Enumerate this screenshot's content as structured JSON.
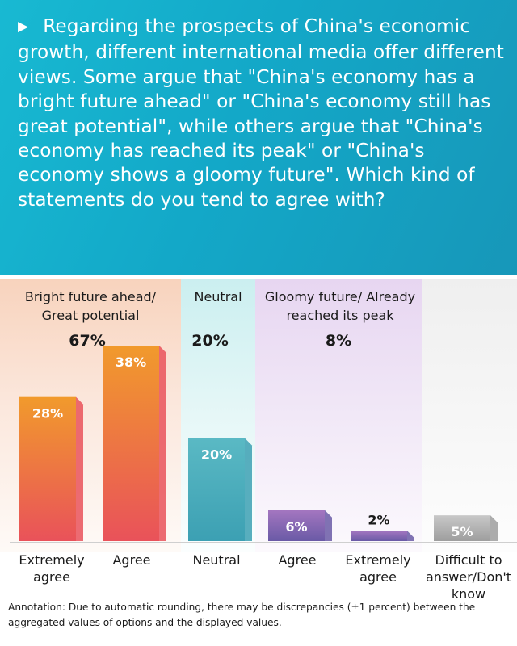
{
  "question": {
    "marker": "▶",
    "text": "Regarding the prospects of China's economic growth, different international media offer different views. Some argue that \"China's economy has a bright future ahead\" or \"China's economy still has great potential\", while others argue that \"China's economy has reached its peak\" or \"China's economy shows a gloomy future\". Which kind of statements do you tend to agree with?"
  },
  "groups": [
    {
      "label": "Bright future ahead/\nGreat potential",
      "total": "67%"
    },
    {
      "label": "Neutral",
      "total": "20%"
    },
    {
      "label": "Gloomy future/ Already\nreached its peak",
      "total": "8%"
    }
  ],
  "annotation": "Annotation: Due to automatic rounding, there may be discrepancies (±1 percent) between the aggregated values of options and the displayed values.",
  "chart_data": {
    "type": "bar",
    "categories": [
      "Extremely agree",
      "Agree",
      "Neutral",
      "Agree",
      "Extremely agree",
      "Difficult to answer/Don't know"
    ],
    "values": [
      28,
      38,
      20,
      6,
      2,
      5
    ],
    "value_labels": [
      "28%",
      "38%",
      "20%",
      "6%",
      "2%",
      "5%"
    ],
    "groups": [
      {
        "name": "Bright future ahead/ Great potential",
        "total": 67,
        "categories": [
          "Extremely agree",
          "Agree"
        ]
      },
      {
        "name": "Neutral",
        "total": 20,
        "categories": [
          "Neutral"
        ]
      },
      {
        "name": "Gloomy future/ Already reached its peak",
        "total": 8,
        "categories": [
          "Agree",
          "Extremely agree"
        ]
      }
    ],
    "colors": {
      "bright": [
        "#f19a2c",
        "#e9525a"
      ],
      "neutral": [
        "#5ab9c4",
        "#3ca0b3"
      ],
      "gloomy": [
        "#a476c0",
        "#6a5aa6"
      ],
      "dk": [
        "#c8c8c8",
        "#9e9e9e"
      ]
    },
    "ylim": [
      0,
      38
    ],
    "grid": false,
    "legend": false
  }
}
